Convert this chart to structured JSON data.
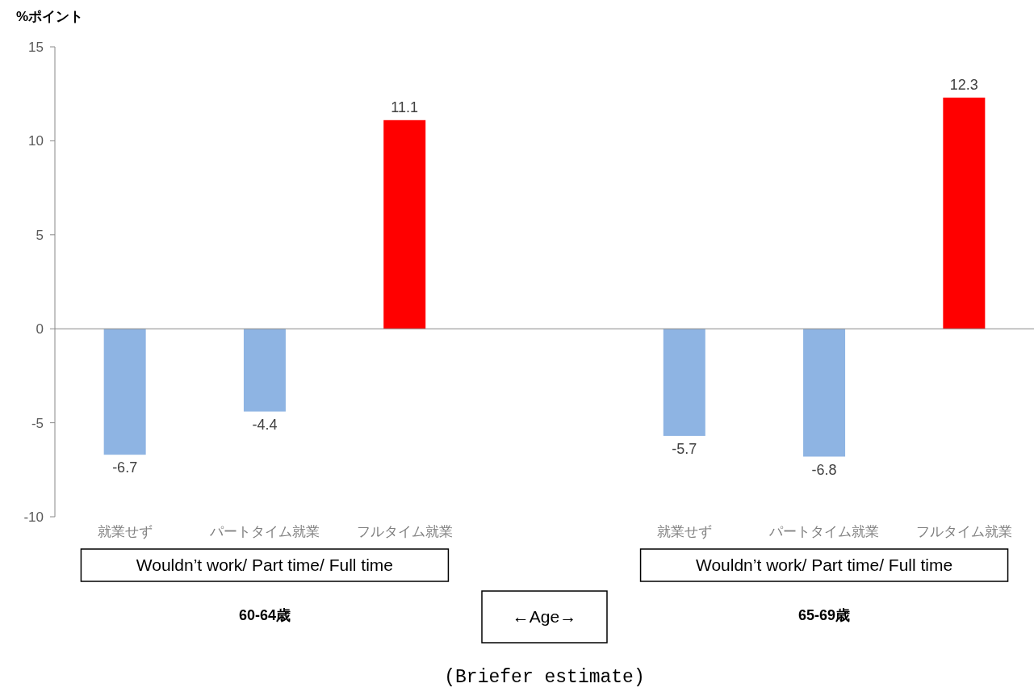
{
  "chart_data": {
    "type": "bar",
    "ylabel": "%ポイント",
    "categories": [
      "就業せず",
      "パートタイム就業",
      "フルタイム就業",
      null,
      "就業せず",
      "パートタイム就業",
      "フルタイム就業"
    ],
    "values": [
      -6.7,
      -4.4,
      11.1,
      null,
      -5.7,
      -6.8,
      12.3
    ],
    "colors": [
      "#8eb4e3",
      "#8eb4e3",
      "#ff0000",
      null,
      "#8eb4e3",
      "#8eb4e3",
      "#ff0000"
    ],
    "data_labels": true,
    "ylim": [
      -10,
      15
    ],
    "yticks": [
      -10,
      -5,
      0,
      5,
      10,
      15
    ],
    "annotations": [
      "Wouldn’t work/ Part time/ Full time",
      "Wouldn’t work/ Part time/ Full time",
      "60-64歳",
      "←Age→",
      "65-69歳",
      "(Briefer estimate)"
    ]
  }
}
